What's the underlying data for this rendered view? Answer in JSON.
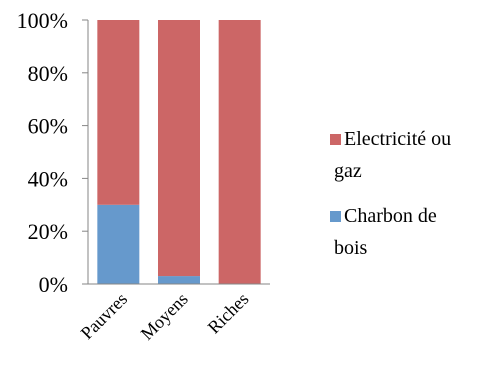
{
  "chart_data": {
    "type": "bar",
    "stacked": true,
    "percent": true,
    "categories": [
      "Pauvres",
      "Moyens",
      "Riches"
    ],
    "series": [
      {
        "name": "Charbon de bois",
        "values": [
          30,
          3,
          0
        ],
        "color": "#6699cc"
      },
      {
        "name": "Electricité ou gaz",
        "values": [
          70,
          97,
          100
        ],
        "color": "#cc6666"
      }
    ],
    "yticks": [
      "0%",
      "20%",
      "40%",
      "60%",
      "80%",
      "100%"
    ],
    "ylim": [
      0,
      100
    ],
    "grid": false,
    "legend": {
      "placement": "right",
      "entries": [
        {
          "lines": [
            "Electricité ou",
            "gaz"
          ],
          "series": "Electricité ou gaz"
        },
        {
          "lines": [
            "Charbon de",
            "bois"
          ],
          "series": "Charbon de bois"
        }
      ]
    }
  }
}
